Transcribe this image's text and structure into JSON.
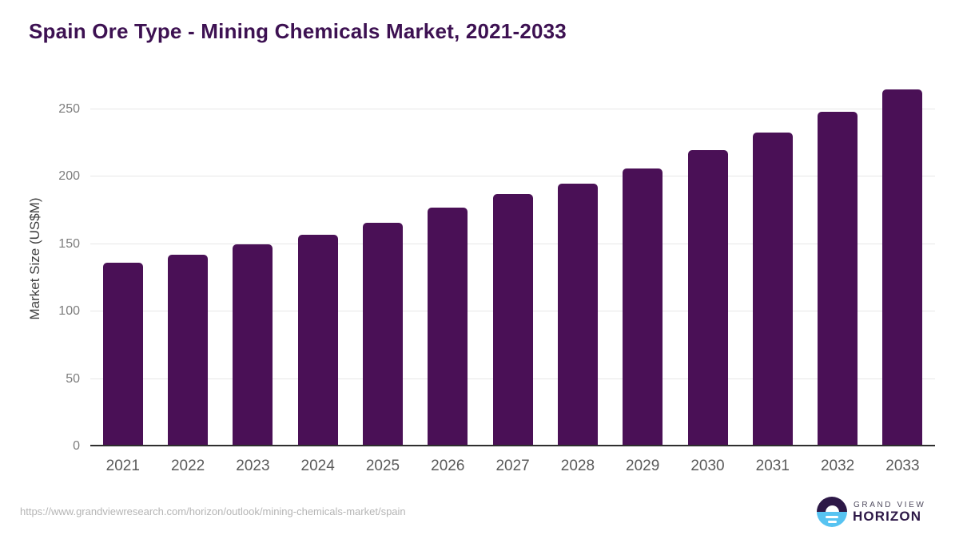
{
  "header": {
    "title_color": "#3d1152"
  },
  "chart_data": {
    "type": "bar",
    "title": "Spain Ore Type - Mining Chemicals Market, 2021-2033",
    "categories": [
      "2021",
      "2022",
      "2023",
      "2024",
      "2025",
      "2026",
      "2027",
      "2028",
      "2029",
      "2030",
      "2031",
      "2032",
      "2033"
    ],
    "values": [
      136,
      142,
      150,
      157,
      166,
      177,
      187,
      195,
      206,
      220,
      233,
      248,
      265
    ],
    "xlabel": "",
    "ylabel": "Market Size (US$M)",
    "ylim": [
      0,
      278
    ],
    "yticks": [
      0,
      50,
      100,
      150,
      200,
      250
    ],
    "grid": "horizontal-only",
    "legend": "none",
    "bar_color": "#4a1056"
  },
  "footer": {
    "source_url": "https://www.grandviewresearch.com/horizon/outlook/mining-chemicals-market/spain",
    "logo": {
      "line1": "GRAND VIEW",
      "line2": "HORIZON",
      "purple": "#2d1847",
      "blue": "#57c3f1"
    }
  }
}
